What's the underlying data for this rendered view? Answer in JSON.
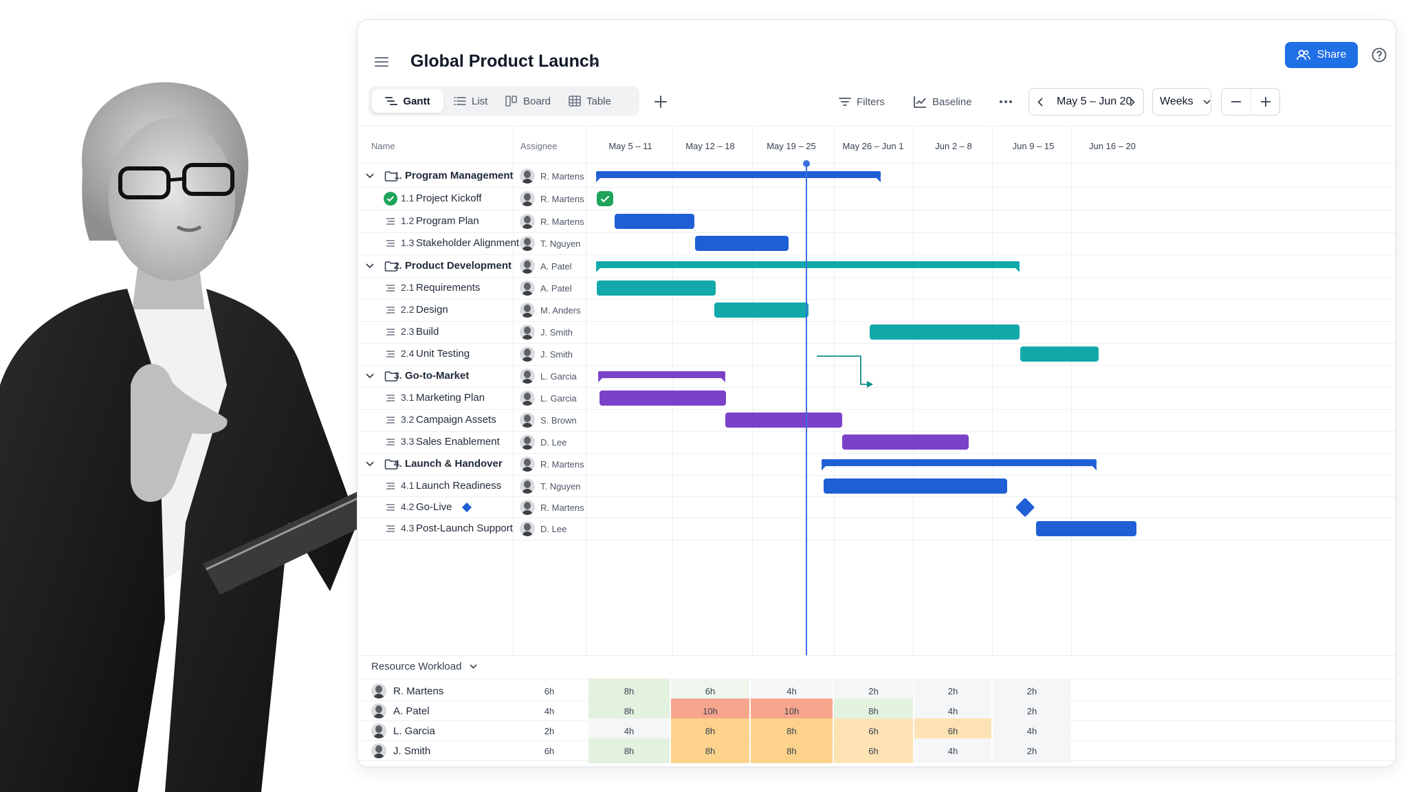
{
  "header": {
    "title": "Global Product Launch",
    "share_label": "Share"
  },
  "views": [
    {
      "label": "Gantt",
      "active": true,
      "icon": "gantt-icon"
    },
    {
      "label": "List",
      "active": false,
      "icon": "list-icon"
    },
    {
      "label": "Board",
      "active": false,
      "icon": "board-icon"
    },
    {
      "label": "Table",
      "active": false,
      "icon": "table-icon"
    }
  ],
  "toolbar": {
    "filters_label": "Filters",
    "baseline_label": "Baseline",
    "date_range": "May 5 – Jun 20",
    "scale": "Weeks"
  },
  "columns": {
    "name": "Name",
    "assignee": "Assignee"
  },
  "weeks": [
    "May 5 – 11",
    "May 12 – 18",
    "May 19 – 25",
    "May 26 – Jun 1",
    "Jun 2 – 8",
    "Jun 9 – 15",
    "Jun 16 – 20"
  ],
  "colors": {
    "blue": "#1f5fd6",
    "teal": "#13a9ab",
    "purple": "#7a42c9",
    "today": "#3b6fe0",
    "done": "#1fa35b"
  },
  "tasks": [
    {
      "num": "1.",
      "name": "Program Management",
      "assignee": "R. Martens",
      "group": true
    },
    {
      "num": "1.1",
      "name": "Project Kickoff",
      "assignee": "R. Martens",
      "group": false,
      "status": "complete"
    },
    {
      "num": "1.2",
      "name": "Program Plan",
      "assignee": "R. Martens",
      "group": false
    },
    {
      "num": "1.3",
      "name": "Stakeholder Alignment",
      "assignee": "T. Nguyen",
      "group": false
    },
    {
      "num": "2.",
      "name": "Product Development",
      "assignee": "A. Patel",
      "group": true
    },
    {
      "num": "2.1",
      "name": "Requirements",
      "assignee": "A. Patel",
      "group": false
    },
    {
      "num": "2.2",
      "name": "Design",
      "assignee": "M. Anders",
      "group": false
    },
    {
      "num": "2.3",
      "name": "Build",
      "assignee": "J. Smith",
      "group": false
    },
    {
      "num": "2.4",
      "name": "Unit Testing",
      "assignee": "J. Smith",
      "group": false
    },
    {
      "num": "3.",
      "name": "Go-to-Market",
      "assignee": "L. Garcia",
      "group": true
    },
    {
      "num": "3.1",
      "name": "Marketing Plan",
      "assignee": "L. Garcia",
      "group": false
    },
    {
      "num": "3.2",
      "name": "Campaign Assets",
      "assignee": "S. Brown",
      "group": false
    },
    {
      "num": "3.3",
      "name": "Sales Enablement",
      "assignee": "D. Lee",
      "group": false
    },
    {
      "num": "4.",
      "name": "Launch & Handover",
      "assignee": "R. Martens",
      "group": true
    },
    {
      "num": "4.1",
      "name": "Launch Readiness",
      "assignee": "T. Nguyen",
      "group": false
    },
    {
      "num": "4.2",
      "name": "Go-Live",
      "assignee": "R. Martens",
      "group": false,
      "milestone": true
    },
    {
      "num": "4.3",
      "name": "Post-Launch Support",
      "assignee": "D. Lee",
      "group": false
    }
  ],
  "workload": {
    "label": "Resource Workload",
    "rows": [
      {
        "name": "R. Martens",
        "total": "6h",
        "values": [
          "8h",
          "6h",
          "4h",
          "2h",
          "2h",
          "2h"
        ]
      },
      {
        "name": "A. Patel",
        "total": "4h",
        "values": [
          "8h",
          "10h",
          "10h",
          "8h",
          "4h",
          "2h"
        ]
      },
      {
        "name": "L. Garcia",
        "total": "2h",
        "values": [
          "4h",
          "8h",
          "8h",
          "6h",
          "6h",
          "4h"
        ]
      },
      {
        "name": "J. Smith",
        "total": "6h",
        "values": [
          "8h",
          "8h",
          "8h",
          "6h",
          "4h",
          "2h"
        ]
      }
    ]
  }
}
